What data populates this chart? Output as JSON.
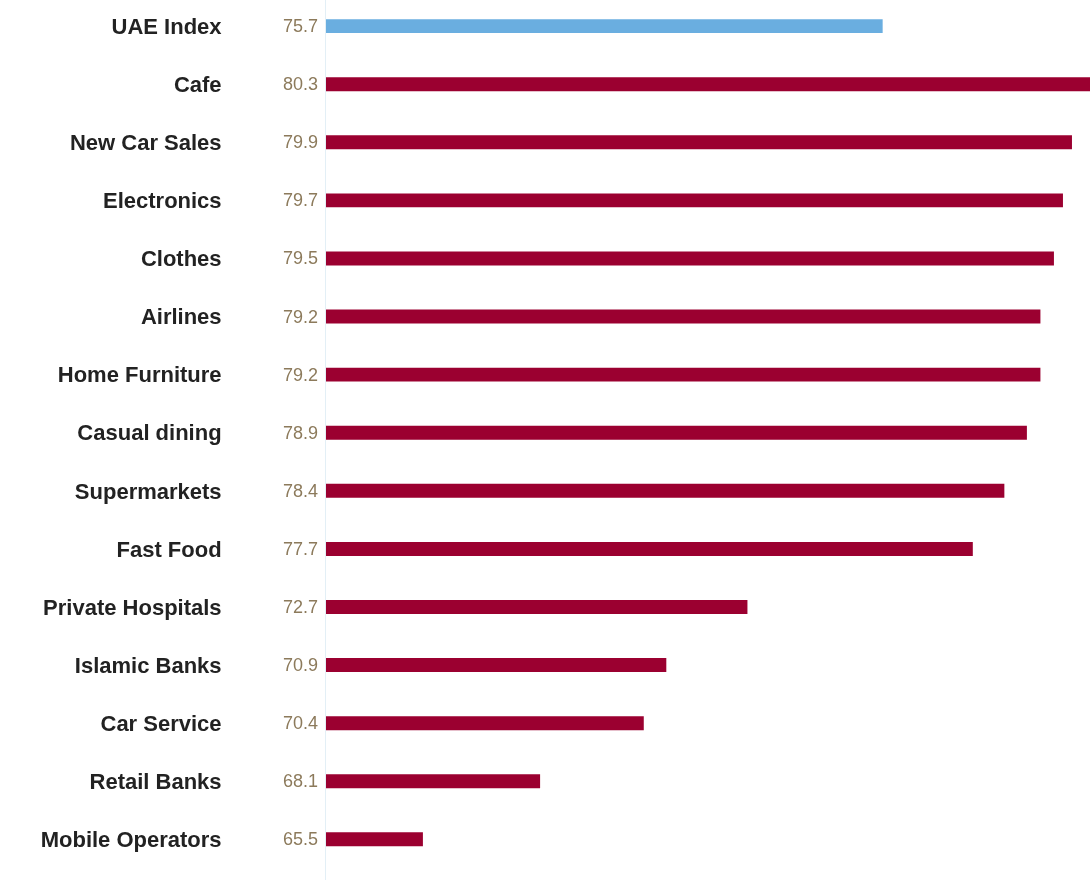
{
  "chart_data": {
    "type": "bar",
    "orientation": "horizontal",
    "categories": [
      "UAE Index",
      "Cafe",
      "New Car Sales",
      "Electronics",
      "Clothes",
      "Airlines",
      "Home Furniture",
      "Casual dining",
      "Supermarkets",
      "Fast Food",
      "Private Hospitals",
      "Islamic Banks",
      "Car Service",
      "Retail Banks",
      "Mobile Operators"
    ],
    "values": [
      75.7,
      80.3,
      79.9,
      79.7,
      79.5,
      79.2,
      79.2,
      78.9,
      78.4,
      77.7,
      72.7,
      70.9,
      70.4,
      68.1,
      65.5
    ],
    "colors": [
      "#6aaee0",
      "#9b0030",
      "#9b0030",
      "#9b0030",
      "#9b0030",
      "#9b0030",
      "#9b0030",
      "#9b0030",
      "#9b0030",
      "#9b0030",
      "#9b0030",
      "#9b0030",
      "#9b0030",
      "#9b0030",
      "#9b0030"
    ],
    "xlim": [
      63.35,
      80.3
    ],
    "data_labels": true,
    "tick_labels": "y"
  }
}
